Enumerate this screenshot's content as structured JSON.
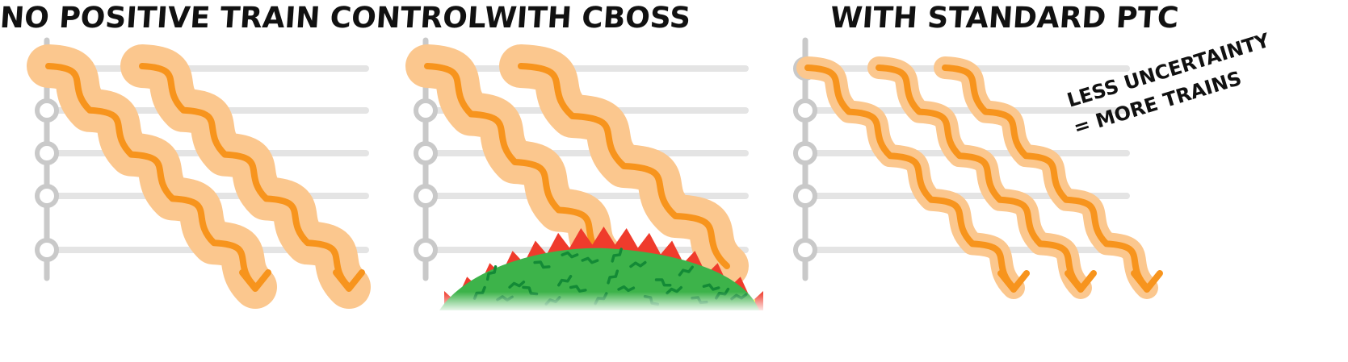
{
  "panels": [
    {
      "id": "no-ptc",
      "title": "NO POSITIVE TRAIN CONTROL"
    },
    {
      "id": "cboss",
      "title": "WITH CBOSS"
    },
    {
      "id": "standard-ptc",
      "title": "WITH STANDARD PTC"
    }
  ],
  "annotation": {
    "line1": "LESS UNCERTAINTY",
    "line2": "= MORE TRAINS"
  },
  "colors": {
    "track": "#e4e4e4",
    "station": "#c9c9c9",
    "train_path": "#f7941d",
    "uncertainty": "#fbc78e",
    "money_green": "#3db34a",
    "money_dark": "#138a36",
    "fire_red": "#ef3b2c",
    "fire_yellow": "#fff200"
  }
}
